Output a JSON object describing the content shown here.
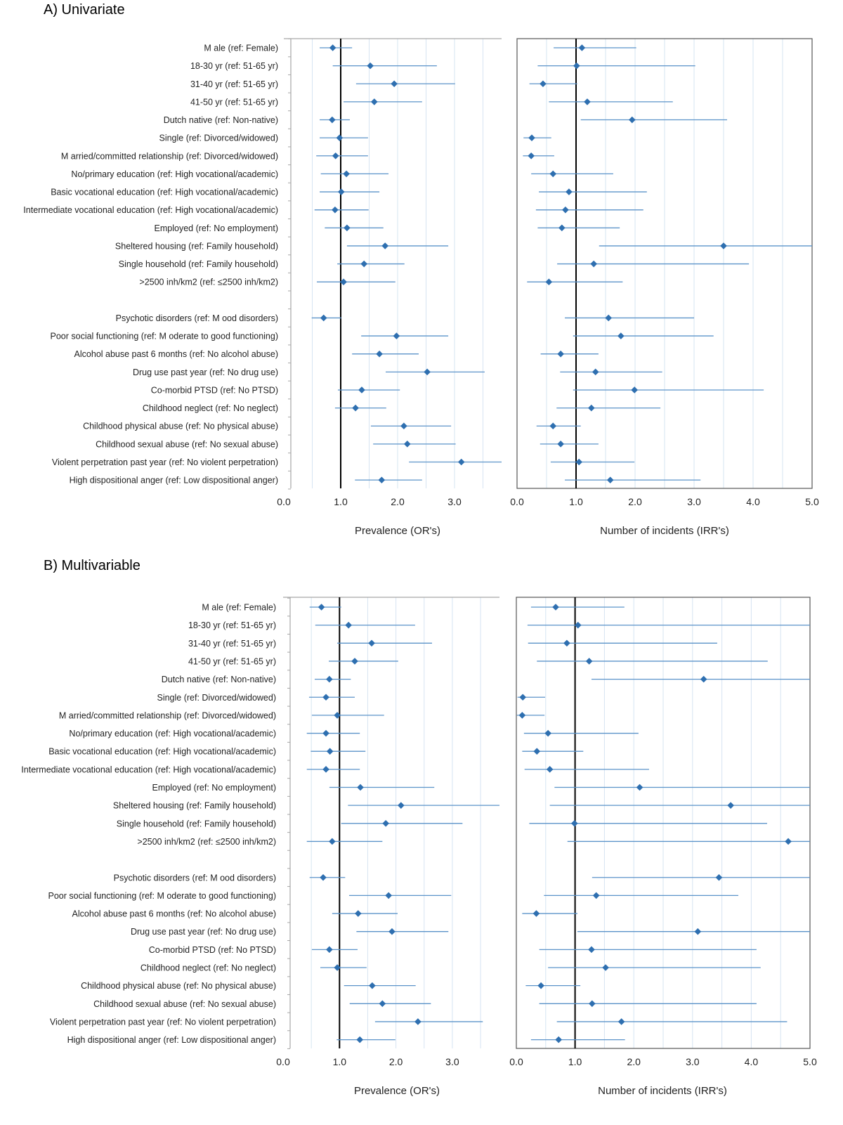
{
  "colors": {
    "marker": "#2e6fb0",
    "ci_line": "#5b93c9",
    "grid": "#d6e4f2",
    "frame": "#a6a6a6",
    "ref_line": "#000000"
  },
  "panels": [
    {
      "title": "A) Univariate"
    },
    {
      "title": "B) Multivariable"
    }
  ],
  "categories": [
    "M ale (ref: Female)",
    "18-30 yr (ref: 51-65 yr)",
    "31-40 yr (ref: 51-65 yr)",
    "41-50 yr (ref: 51-65 yr)",
    "Dutch native (ref: Non-native)",
    "Single (ref: Divorced/widowed)",
    "M arried/committed relationship (ref: Divorced/widowed)",
    "No/primary education (ref: High vocational/academic)",
    "Basic vocational education (ref: High vocational/academic)",
    "Intermediate vocational education (ref: High vocational/academic)",
    "Employed (ref: No employment)",
    "Sheltered housing (ref: Family household)",
    "Single household (ref: Family household)",
    ">2500 inh/km2 (ref:  ≤2500 inh/km2)",
    "",
    "Psychotic disorders (ref: M ood disorders)",
    "Poor social functioning (ref: M oderate to good functioning)",
    "Alcohol abuse past 6 months (ref: No alcohol abuse)",
    "Drug use past year (ref: No drug use)",
    "Co-morbid PTSD (ref: No PTSD)",
    "Childhood neglect (ref: No neglect)",
    "Childhood physical abuse (ref: No physical abuse)",
    "Childhood sexual abuse (ref: No sexual abuse)",
    "Violent perpetration past year (ref: No violent perpetration)",
    "High dispositional anger (ref: Low dispositional anger)"
  ],
  "chart_data": [
    {
      "type": "scatter",
      "subtype": "forest",
      "panel": "A) Univariate",
      "xlabel": "Prevalence (OR's)",
      "xlim": [
        0,
        3.83
      ],
      "reference_line": 1.0,
      "xticks": [
        "0.0",
        "1.0",
        "2.0",
        "3.0"
      ],
      "xtick_values": [
        0,
        1,
        2,
        3
      ],
      "grid_step": 0.5,
      "estimate": [
        0.86,
        1.52,
        1.94,
        1.59,
        0.85,
        0.98,
        0.91,
        1.1,
        1.01,
        0.9,
        1.11,
        1.78,
        1.41,
        1.05,
        null,
        0.7,
        1.98,
        1.68,
        2.52,
        1.37,
        1.26,
        2.11,
        2.17,
        3.12,
        1.72
      ],
      "lower": [
        0.63,
        0.86,
        1.27,
        1.05,
        0.63,
        0.63,
        0.57,
        0.65,
        0.63,
        0.54,
        0.72,
        1.11,
        0.94,
        0.58,
        null,
        0.49,
        1.36,
        1.2,
        1.79,
        0.95,
        0.9,
        1.53,
        1.57,
        2.2,
        1.25
      ],
      "upper": [
        1.2,
        2.69,
        3.01,
        2.43,
        1.16,
        1.48,
        1.48,
        1.84,
        1.68,
        1.49,
        1.75,
        2.89,
        2.12,
        1.96,
        null,
        1.01,
        2.89,
        2.37,
        3.53,
        2.04,
        1.8,
        2.94,
        3.02,
        3.83,
        2.43
      ]
    },
    {
      "type": "scatter",
      "subtype": "forest",
      "panel": "A) Univariate",
      "xlabel": "Number of incidents (IRR's)",
      "xlim": [
        0,
        5
      ],
      "reference_line": 1.0,
      "xticks": [
        "0.0",
        "1.0",
        "2.0",
        "3.0",
        "4.0",
        "5.0"
      ],
      "xtick_values": [
        0,
        1,
        2,
        3,
        4,
        5
      ],
      "grid_step": 0.5,
      "estimate": [
        1.1,
        1.01,
        0.44,
        1.19,
        1.95,
        0.25,
        0.24,
        0.61,
        0.88,
        0.82,
        0.76,
        3.5,
        1.3,
        0.54,
        null,
        1.55,
        1.76,
        0.74,
        1.33,
        1.99,
        1.26,
        0.61,
        0.74,
        1.05,
        1.58
      ],
      "lower": [
        0.62,
        0.35,
        0.21,
        0.54,
        1.08,
        0.11,
        0.1,
        0.24,
        0.37,
        0.32,
        0.35,
        1.39,
        0.68,
        0.17,
        null,
        0.81,
        0.95,
        0.4,
        0.73,
        0.95,
        0.67,
        0.33,
        0.39,
        0.57,
        0.81
      ],
      "upper": [
        2.02,
        3.02,
        1.02,
        2.64,
        3.56,
        0.58,
        0.63,
        1.63,
        2.2,
        2.14,
        1.74,
        5.0,
        3.93,
        1.79,
        null,
        3.0,
        3.33,
        1.38,
        2.46,
        4.18,
        2.43,
        1.08,
        1.38,
        1.99,
        3.11
      ]
    },
    {
      "type": "scatter",
      "subtype": "forest",
      "panel": "B) Multivariable",
      "xlabel": "Prevalence (OR's)",
      "xlim": [
        0,
        3.84
      ],
      "reference_line": 1.0,
      "xticks": [
        "0.0",
        "1.0",
        "2.0",
        "3.0"
      ],
      "xtick_values": [
        0,
        1,
        2,
        3
      ],
      "grid_step": 0.5,
      "estimate": [
        0.68,
        1.16,
        1.57,
        1.27,
        0.82,
        0.76,
        0.96,
        0.76,
        0.83,
        0.76,
        1.37,
        2.09,
        1.82,
        0.87,
        null,
        0.71,
        1.87,
        1.33,
        1.93,
        0.82,
        0.96,
        1.58,
        1.76,
        2.39,
        1.36
      ],
      "lower": [
        0.47,
        0.57,
        0.96,
        0.81,
        0.56,
        0.46,
        0.51,
        0.42,
        0.49,
        0.42,
        0.82,
        1.15,
        1.03,
        0.42,
        null,
        0.47,
        1.17,
        0.87,
        1.3,
        0.51,
        0.66,
        1.08,
        1.18,
        1.63,
        0.95
      ],
      "upper": [
        1.03,
        2.34,
        2.64,
        2.04,
        1.2,
        1.27,
        1.79,
        1.36,
        1.46,
        1.36,
        2.68,
        3.84,
        3.18,
        1.76,
        null,
        1.1,
        2.98,
        2.03,
        2.93,
        1.32,
        1.48,
        2.35,
        2.62,
        3.54,
        1.99
      ]
    },
    {
      "type": "scatter",
      "subtype": "forest",
      "panel": "B) Multivariable",
      "xlabel": "Number of incidents (IRR's)",
      "xlim": [
        0,
        5
      ],
      "reference_line": 1.0,
      "xticks": [
        "0.0",
        "1.0",
        "2.0",
        "3.0",
        "4.0",
        "5.0"
      ],
      "xtick_values": [
        0,
        1,
        2,
        3,
        4,
        5
      ],
      "grid_step": 0.5,
      "estimate": [
        0.67,
        1.05,
        0.86,
        1.24,
        3.19,
        0.11,
        0.1,
        0.54,
        0.35,
        0.57,
        2.1,
        3.65,
        0.99,
        4.63,
        null,
        3.45,
        1.36,
        0.34,
        3.09,
        1.28,
        1.52,
        0.42,
        1.29,
        1.79,
        0.72
      ],
      "lower": [
        0.25,
        0.19,
        0.2,
        0.35,
        1.28,
        0.02,
        0.01,
        0.13,
        0.1,
        0.14,
        0.65,
        0.57,
        0.22,
        0.87,
        null,
        1.29,
        0.47,
        0.1,
        1.04,
        0.39,
        0.54,
        0.16,
        0.39,
        0.69,
        0.25
      ],
      "upper": [
        1.84,
        5.0,
        3.42,
        4.28,
        5.0,
        0.49,
        0.48,
        2.08,
        1.14,
        2.26,
        5.0,
        5.0,
        4.27,
        5.0,
        null,
        5.0,
        3.78,
        1.04,
        5.0,
        4.09,
        4.16,
        1.09,
        4.09,
        4.61,
        1.85
      ]
    }
  ]
}
